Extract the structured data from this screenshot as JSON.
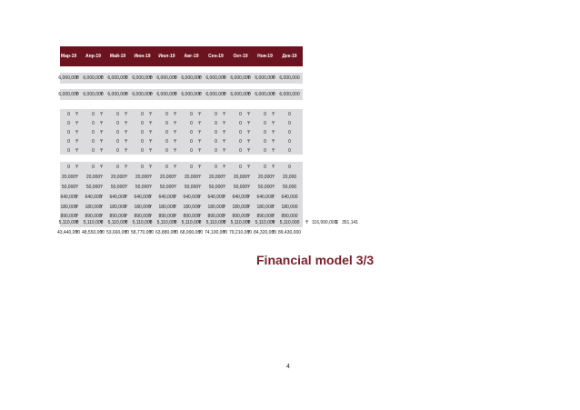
{
  "months": [
    "Мар-19",
    "Апр-19",
    "Май-19",
    "Июн-19",
    "Июл-19",
    "Авг-19",
    "Сен-19",
    "Окт-19",
    "Ноя-19",
    "Дек-19"
  ],
  "currency_symbol": "₸",
  "rows": {
    "r1": [
      "6,000,000",
      "6,000,000",
      "6,000,000",
      "6,000,000",
      "6,000,000",
      "6,000,000",
      "6,000,000",
      "6,000,000",
      "6,000,000",
      "6,000,000"
    ],
    "r2": [
      "6,000,000",
      "6,000,000",
      "6,000,000",
      "6,000,000",
      "6,000,000",
      "6,000,000",
      "6,000,000",
      "6,000,000",
      "6,000,000",
      "6,000,000"
    ],
    "z1": [
      "0",
      "0",
      "0",
      "0",
      "0",
      "0",
      "0",
      "0",
      "0",
      "0"
    ],
    "z2": [
      "0",
      "0",
      "0",
      "0",
      "0",
      "0",
      "0",
      "0",
      "0",
      "0"
    ],
    "z3": [
      "0",
      "0",
      "0",
      "0",
      "0",
      "0",
      "0",
      "0",
      "0",
      "0"
    ],
    "z4": [
      "0",
      "0",
      "0",
      "0",
      "0",
      "0",
      "0",
      "0",
      "0",
      "0"
    ],
    "z5": [
      "0",
      "0",
      "0",
      "0",
      "0",
      "0",
      "0",
      "0",
      "0",
      "0"
    ],
    "z6": [
      "0",
      "0",
      "0",
      "0",
      "0",
      "0",
      "0",
      "0",
      "0",
      "0"
    ],
    "a1": [
      "20,000",
      "20,000",
      "20,000",
      "20,000",
      "20,000",
      "20,000",
      "20,000",
      "20,000",
      "20,000",
      "20,000"
    ],
    "a2": [
      "50,000",
      "50,000",
      "50,000",
      "50,000",
      "50,000",
      "50,000",
      "50,000",
      "50,000",
      "50,000",
      "50,000"
    ],
    "a3": [
      "640,000",
      "640,000",
      "640,000",
      "640,000",
      "640,000",
      "640,000",
      "640,000",
      "640,000",
      "640,000",
      "640,000"
    ],
    "a4": [
      "180,000",
      "180,000",
      "180,000",
      "180,000",
      "180,000",
      "180,000",
      "180,000",
      "180,000",
      "180,000",
      "180,000"
    ],
    "a5": [
      "890,000",
      "890,000",
      "890,000",
      "890,000",
      "890,000",
      "890,000",
      "890,000",
      "890,000",
      "890,000",
      "890,000"
    ],
    "a6": [
      "5,110,000",
      "5,110,000",
      "5,110,000",
      "5,110,000",
      "5,110,000",
      "5,110,000",
      "5,110,000",
      "5,110,000",
      "5,110,000",
      "5,110,000"
    ],
    "a7": [
      "43,440,000",
      "48,550,000",
      "53,660,000",
      "58,770,000",
      "63,880,000",
      "68,990,000",
      "74,100,000",
      "79,210,000",
      "84,320,000",
      "89,430,000"
    ]
  },
  "a6_extra": {
    "total": "116,990,000",
    "dollar_sign": "$",
    "usd": "351,141"
  },
  "title": "Financial model 3/3",
  "page_number": "4"
}
